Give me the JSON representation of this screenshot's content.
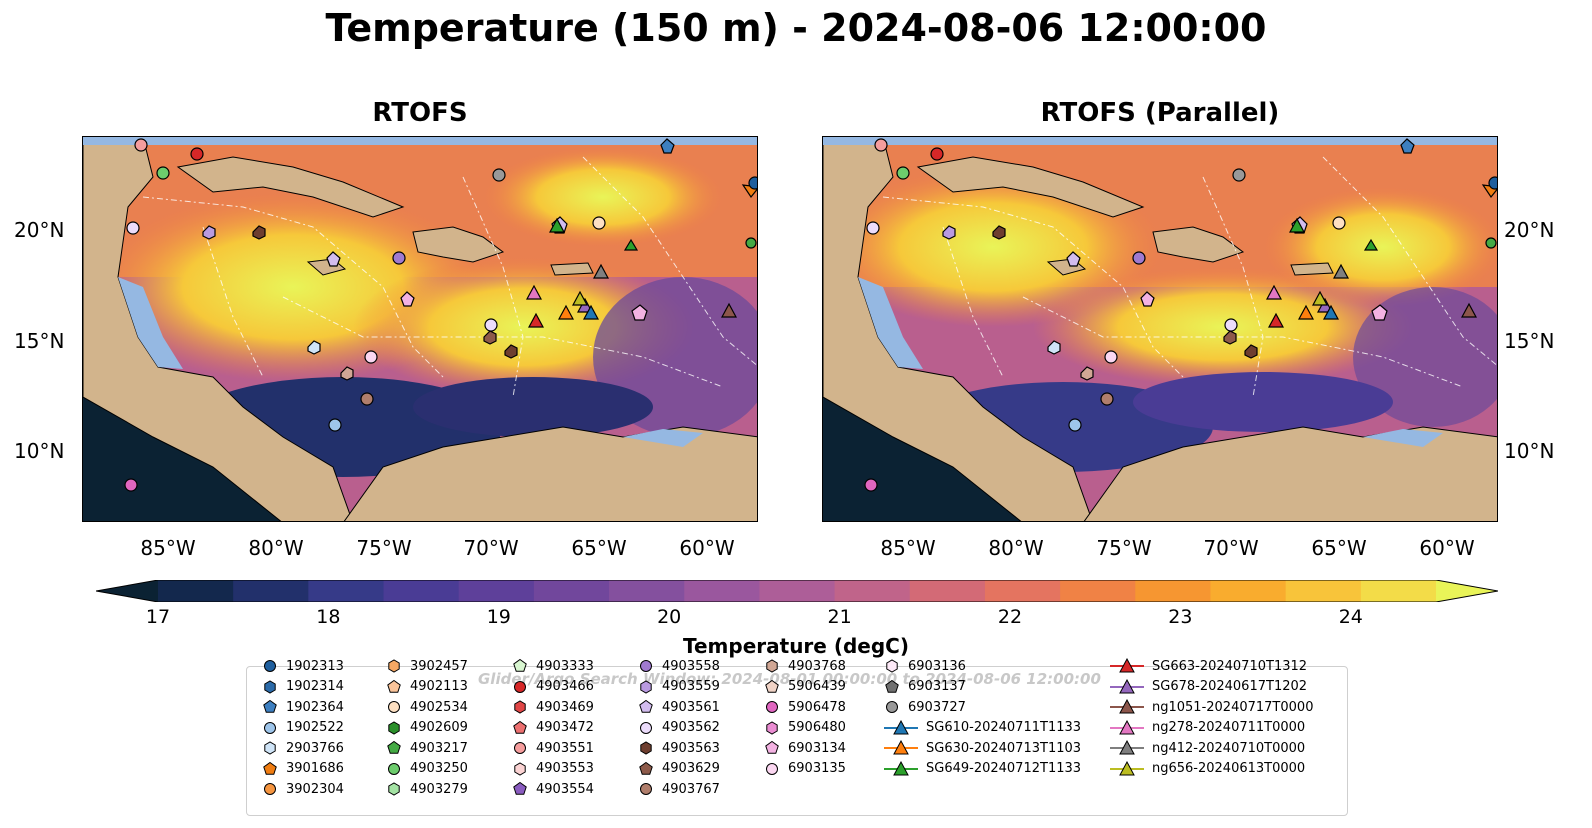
{
  "title": "Temperature (150 m) - 2024-08-06 12:00:00",
  "panels": [
    {
      "title": "RTOFS"
    },
    {
      "title": "RTOFS (Parallel)"
    }
  ],
  "lat_labels": [
    "20°N",
    "15°N",
    "10°N"
  ],
  "lon_labels": [
    "85°W",
    "80°W",
    "75°W",
    "70°W",
    "65°W",
    "60°W"
  ],
  "colorbar": {
    "label": "Temperature (degC)",
    "ticks": [
      "17",
      "18",
      "19",
      "20",
      "21",
      "22",
      "23",
      "24"
    ],
    "colors": [
      "#0b2233",
      "#13284d",
      "#22306b",
      "#363a88",
      "#4a3c95",
      "#5e409a",
      "#71479c",
      "#84509e",
      "#9a579e",
      "#ad5e98",
      "#c0648a",
      "#d36a76",
      "#e47460",
      "#f08245",
      "#f69631",
      "#f9ac2e",
      "#f8c43a",
      "#f3dc48",
      "#e9f458"
    ]
  },
  "legend_watermark": "Glider/Argo Search Window: 2024-08-01 00:00:00 to 2024-08-06 12:00:00",
  "legend": [
    {
      "label": "1902313",
      "marker": "circle",
      "color": "#1f5f9e"
    },
    {
      "label": "1902314",
      "marker": "hexagon",
      "color": "#2b6aa8"
    },
    {
      "label": "1902364",
      "marker": "pentagon",
      "color": "#3d7fc0"
    },
    {
      "label": "1902522",
      "marker": "circle",
      "color": "#9ec5ea"
    },
    {
      "label": "2903766",
      "marker": "hexagon",
      "color": "#cfe4f7"
    },
    {
      "label": "3901686",
      "marker": "pentagon",
      "color": "#f07d12"
    },
    {
      "label": "3902304",
      "marker": "circle",
      "color": "#f59540"
    },
    {
      "label": "3902457",
      "marker": "hexagon",
      "color": "#f6a864"
    },
    {
      "label": "4902113",
      "marker": "pentagon",
      "color": "#fac49a"
    },
    {
      "label": "4902534",
      "marker": "circle",
      "color": "#fde0c2"
    },
    {
      "label": "4902609",
      "marker": "hexagon",
      "color": "#2a8f2a"
    },
    {
      "label": "4903217",
      "marker": "pentagon",
      "color": "#44aa44"
    },
    {
      "label": "4903250",
      "marker": "circle",
      "color": "#6dcc6d"
    },
    {
      "label": "4903279",
      "marker": "hexagon",
      "color": "#a4e3a4"
    },
    {
      "label": "4903333",
      "marker": "pentagon",
      "color": "#d8f6d0"
    },
    {
      "label": "4903466",
      "marker": "circle",
      "color": "#d62728"
    },
    {
      "label": "4903469",
      "marker": "hexagon",
      "color": "#e04646"
    },
    {
      "label": "4903472",
      "marker": "pentagon",
      "color": "#ec7070"
    },
    {
      "label": "4903551",
      "marker": "circle",
      "color": "#f59d9d"
    },
    {
      "label": "4903553",
      "marker": "hexagon",
      "color": "#fbd3d3"
    },
    {
      "label": "4903554",
      "marker": "pentagon",
      "color": "#8a5cc0"
    },
    {
      "label": "4903558",
      "marker": "circle",
      "color": "#a07ad0"
    },
    {
      "label": "4903559",
      "marker": "hexagon",
      "color": "#b99ae0"
    },
    {
      "label": "4903561",
      "marker": "pentagon",
      "color": "#d2bcee"
    },
    {
      "label": "4903562",
      "marker": "circle",
      "color": "#ecdcfb"
    },
    {
      "label": "4903563",
      "marker": "hexagon",
      "color": "#6e3e2f"
    },
    {
      "label": "4903629",
      "marker": "pentagon",
      "color": "#8d5a4a"
    },
    {
      "label": "4903767",
      "marker": "circle",
      "color": "#b07e6c"
    },
    {
      "label": "4903768",
      "marker": "hexagon",
      "color": "#d1a795"
    },
    {
      "label": "5906439",
      "marker": "pentagon",
      "color": "#f0d3c6"
    },
    {
      "label": "5906478",
      "marker": "circle",
      "color": "#e066c0"
    },
    {
      "label": "5906480",
      "marker": "hexagon",
      "color": "#ea8cd2"
    },
    {
      "label": "6903134",
      "marker": "pentagon",
      "color": "#f3b2e2"
    },
    {
      "label": "6903135",
      "marker": "circle",
      "color": "#fbd7f1"
    },
    {
      "label": "6903136",
      "marker": "hexagon",
      "color": "#fde9f7"
    },
    {
      "label": "6903137",
      "marker": "pentagon",
      "color": "#707070"
    },
    {
      "label": "6903727",
      "marker": "circle",
      "color": "#999999"
    },
    {
      "label": "SG610-20240711T1133",
      "marker": "triangle",
      "color": "#1f77b4"
    },
    {
      "label": "SG630-20240713T1103",
      "marker": "triangle",
      "color": "#ff7f0e"
    },
    {
      "label": "SG649-20240712T1133",
      "marker": "triangle",
      "color": "#2ca02c"
    },
    {
      "label": "SG663-20240710T1312",
      "marker": "triangle",
      "color": "#d62728"
    },
    {
      "label": "SG678-20240617T1202",
      "marker": "triangle",
      "color": "#9467bd"
    },
    {
      "label": "ng1051-20240717T0000",
      "marker": "triangle",
      "color": "#8c564b"
    },
    {
      "label": "ng278-20240711T0000",
      "marker": "triangle",
      "color": "#e377c2"
    },
    {
      "label": "ng412-20240710T0000",
      "marker": "triangle",
      "color": "#7f7f7f"
    },
    {
      "label": "ng656-20240613T0000",
      "marker": "triangle",
      "color": "#bcbd22"
    }
  ]
}
